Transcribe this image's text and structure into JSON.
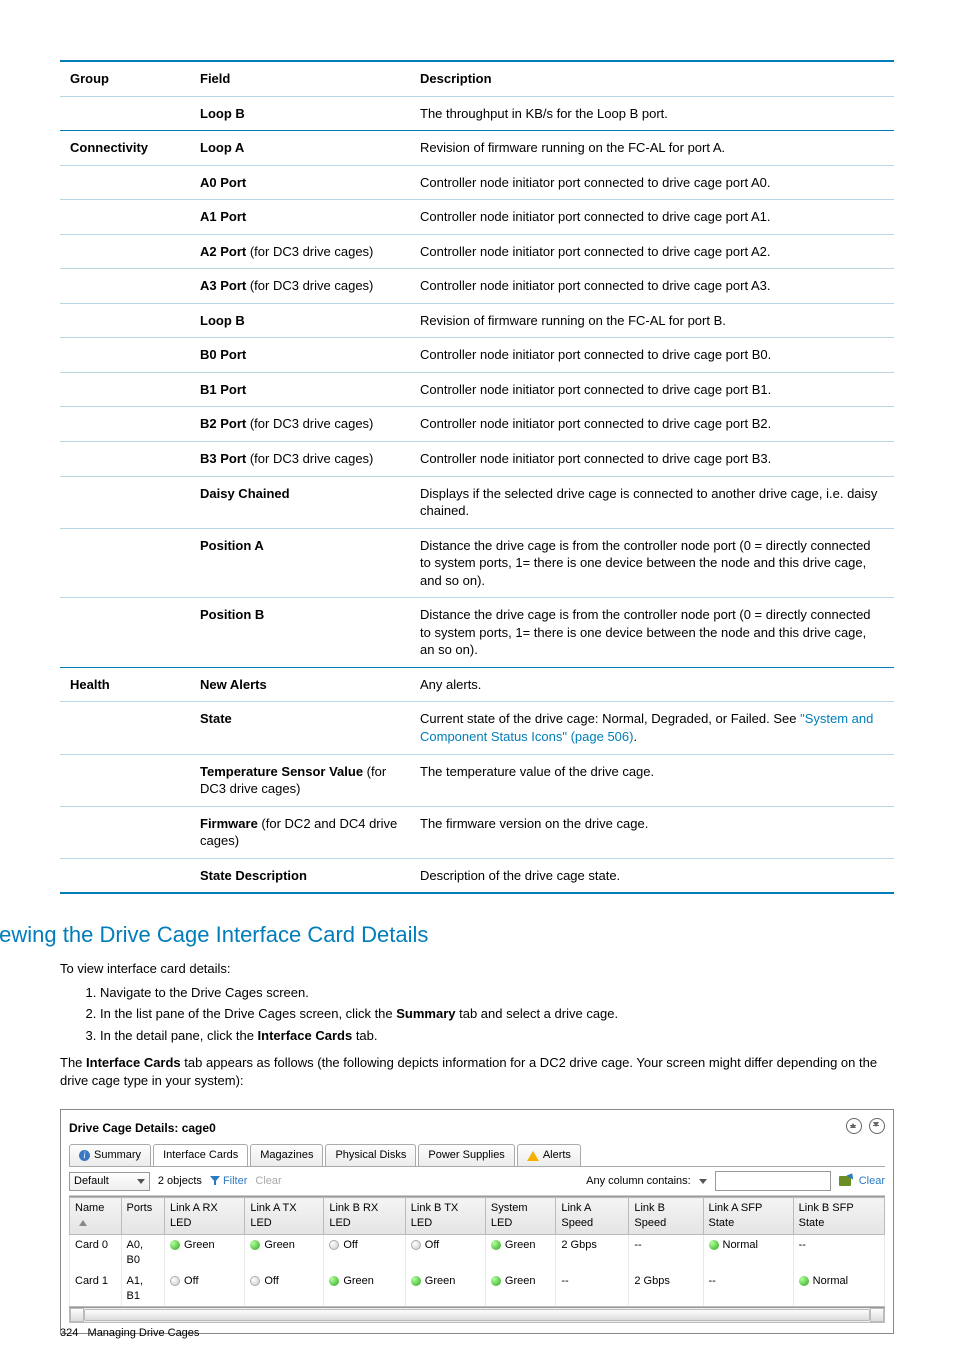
{
  "table": {
    "headers": [
      "Group",
      "Field",
      "Description"
    ],
    "rows": [
      {
        "group": "",
        "field": "Loop B",
        "desc": "The throughput in KB/s for the Loop B port."
      },
      {
        "group": "Connectivity",
        "field": "Loop A",
        "desc": "Revision of firmware running on the FC-AL for port A."
      },
      {
        "group": "",
        "field": "A0 Port",
        "desc": "Controller node initiator port connected to drive cage port A0."
      },
      {
        "group": "",
        "field": "A1 Port",
        "desc": "Controller node initiator port connected to drive cage port A1."
      },
      {
        "group": "",
        "field_bold": "A2 Port",
        "field_plain": " (for DC3 drive cages)",
        "desc": "Controller node initiator port connected to drive cage port A2."
      },
      {
        "group": "",
        "field_bold": "A3 Port",
        "field_plain": " (for DC3 drive cages)",
        "desc": "Controller node initiator port connected to drive cage port A3."
      },
      {
        "group": "",
        "field": "Loop B",
        "desc": "Revision of firmware running on the FC-AL for port B."
      },
      {
        "group": "",
        "field": "B0 Port",
        "desc": "Controller node initiator port connected to drive cage port B0."
      },
      {
        "group": "",
        "field": "B1 Port",
        "desc": "Controller node initiator port connected to drive cage port B1."
      },
      {
        "group": "",
        "field_bold": "B2 Port",
        "field_plain": " (for DC3 drive cages)",
        "desc": "Controller node initiator port connected to drive cage port B2."
      },
      {
        "group": "",
        "field_bold": "B3 Port",
        "field_plain": " (for DC3 drive cages)",
        "desc": "Controller node initiator port connected to drive cage port B3."
      },
      {
        "group": "",
        "field": "Daisy Chained",
        "desc": "Displays if the selected drive cage is connected to another drive cage, i.e. daisy chained."
      },
      {
        "group": "",
        "field": "Position A",
        "desc": "Distance the drive cage is from the controller node port (0 = directly connected to system ports, 1= there is one device between the node and this drive cage, and so on)."
      },
      {
        "group": "",
        "field": "Position B",
        "desc": "Distance the drive cage is from the controller node port (0 = directly connected to system ports, 1= there is one device between the node and this drive cage, an so on)."
      },
      {
        "group": "Health",
        "field": "New Alerts",
        "desc": "Any alerts."
      },
      {
        "group": "",
        "field": "State",
        "desc_pre": "Current state of the drive cage: Normal, Degraded, or Failed. See ",
        "desc_link": "\"System and Component Status Icons\" (page 506)",
        "desc_post": "."
      },
      {
        "group": "",
        "field_bold": "Temperature Sensor Value",
        "field_plain": " (for DC3 drive cages)",
        "desc": "The temperature value of the drive cage."
      },
      {
        "group": "",
        "field_bold": "Firmware",
        "field_plain": " (for DC2 and DC4 drive cages)",
        "desc": "The firmware version on the drive cage."
      },
      {
        "group": "",
        "field": "State Description",
        "desc": "Description of the drive cage state."
      }
    ]
  },
  "heading": "Viewing the Drive Cage Interface Card Details",
  "intro": "To view interface card details:",
  "steps": [
    {
      "text": "Navigate to the Drive Cages screen."
    },
    {
      "pre": "In the list pane of the Drive Cages screen, click the ",
      "bold": "Summary",
      "post": " tab and select a drive cage."
    },
    {
      "pre": "In the detail pane, click the ",
      "bold": "Interface Cards",
      "post": " tab."
    }
  ],
  "tabnote": {
    "pre": "The ",
    "bold": "Interface Cards",
    "post": " tab appears as follows (the following depicts information for a DC2 drive cage. Your screen might differ depending on the drive cage type in your system):"
  },
  "panel": {
    "title": "Drive Cage Details: cage0",
    "tabs": [
      "Summary",
      "Interface Cards",
      "Magazines",
      "Physical Disks",
      "Power Supplies",
      "Alerts"
    ],
    "active_tab": 1,
    "toolbar": {
      "view": "Default",
      "count": "2 objects",
      "filter": "Filter",
      "clear": "Clear",
      "search_label": "Any column contains:",
      "clear2": "Clear"
    },
    "grid": {
      "columns": [
        "Name",
        "Ports",
        "Link A RX LED",
        "Link A TX LED",
        "Link B RX LED",
        "Link B TX LED",
        "System LED",
        "Link A Speed",
        "Link B Speed",
        "Link A SFP State",
        "Link B SFP State"
      ],
      "rows": [
        {
          "name": "Card 0",
          "ports": "A0, B0",
          "larx": "Green",
          "latx": "Green",
          "lbrx": "Off",
          "lbtx": "Off",
          "sys": "Green",
          "laspd": "2 Gbps",
          "lbspd": "--",
          "lasfp": "Normal",
          "lbsfp": "--"
        },
        {
          "name": "Card 1",
          "ports": "A1, B1",
          "larx": "Off",
          "latx": "Off",
          "lbrx": "Green",
          "lbtx": "Green",
          "sys": "Green",
          "laspd": "--",
          "lbspd": "2 Gbps",
          "lasfp": "--",
          "lbsfp": "Normal"
        }
      ]
    }
  },
  "footer": {
    "page": "324",
    "title": "Managing Drive Cages"
  }
}
